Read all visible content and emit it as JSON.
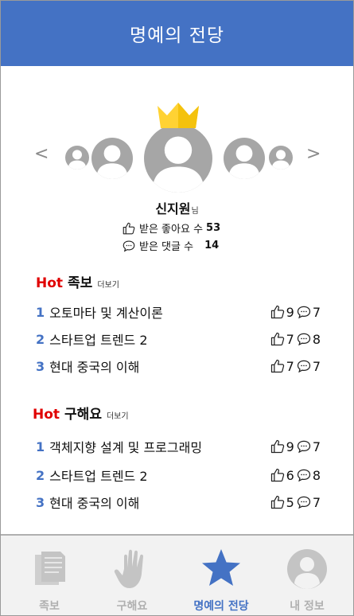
{
  "header": {
    "title": "명예의 전당"
  },
  "carousel": {
    "prev_label": "<",
    "next_label": ">"
  },
  "profile": {
    "name": "신지원",
    "suffix": "님",
    "likes_label": "받은 좋아요 수",
    "likes_count": "53",
    "comments_label": "받은 댓글 수",
    "comments_count": "14"
  },
  "sections": [
    {
      "hot": "Hot",
      "title": "족보",
      "more": "더보기",
      "items": [
        {
          "rank": "1",
          "name": "오토마타 및 계산이론",
          "likes": "9",
          "comments": "7"
        },
        {
          "rank": "2",
          "name": "스타트업 트렌드 2",
          "likes": "7",
          "comments": "8"
        },
        {
          "rank": "3",
          "name": "현대 중국의 이해",
          "likes": "7",
          "comments": "7"
        }
      ]
    },
    {
      "hot": "Hot",
      "title": "구해요",
      "more": "더보기",
      "items": [
        {
          "rank": "1",
          "name": "객체지향 설계 및 프로그래밍",
          "likes": "9",
          "comments": "7"
        },
        {
          "rank": "2",
          "name": "스타트업 트렌드 2",
          "likes": "6",
          "comments": "8"
        },
        {
          "rank": "3",
          "name": "현대 중국의 이해",
          "likes": "5",
          "comments": "7"
        }
      ]
    }
  ],
  "tabs": [
    {
      "label": "족보",
      "icon": "document-icon",
      "active": false
    },
    {
      "label": "구해요",
      "icon": "hand-icon",
      "active": false
    },
    {
      "label": "명예의 전당",
      "icon": "star-icon",
      "active": true
    },
    {
      "label": "내 정보",
      "icon": "user-icon",
      "active": false
    }
  ],
  "colors": {
    "brand": "#4472c4",
    "hot": "#e00000",
    "inactive": "#b0b0b0",
    "avatar": "#a6a6a6",
    "crown": "#ffd233"
  }
}
